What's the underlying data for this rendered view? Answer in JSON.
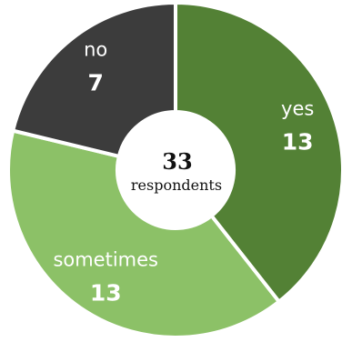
{
  "chart_data": {
    "type": "pie",
    "style": "donut",
    "center_total": "33",
    "center_caption": "respondents",
    "slices": [
      {
        "label": "yes",
        "value": 13,
        "color": "#538135"
      },
      {
        "label": "sometimes",
        "value": 13,
        "color": "#8cc167"
      },
      {
        "label": "no",
        "value": 7,
        "color": "#3c3c3c"
      }
    ]
  }
}
